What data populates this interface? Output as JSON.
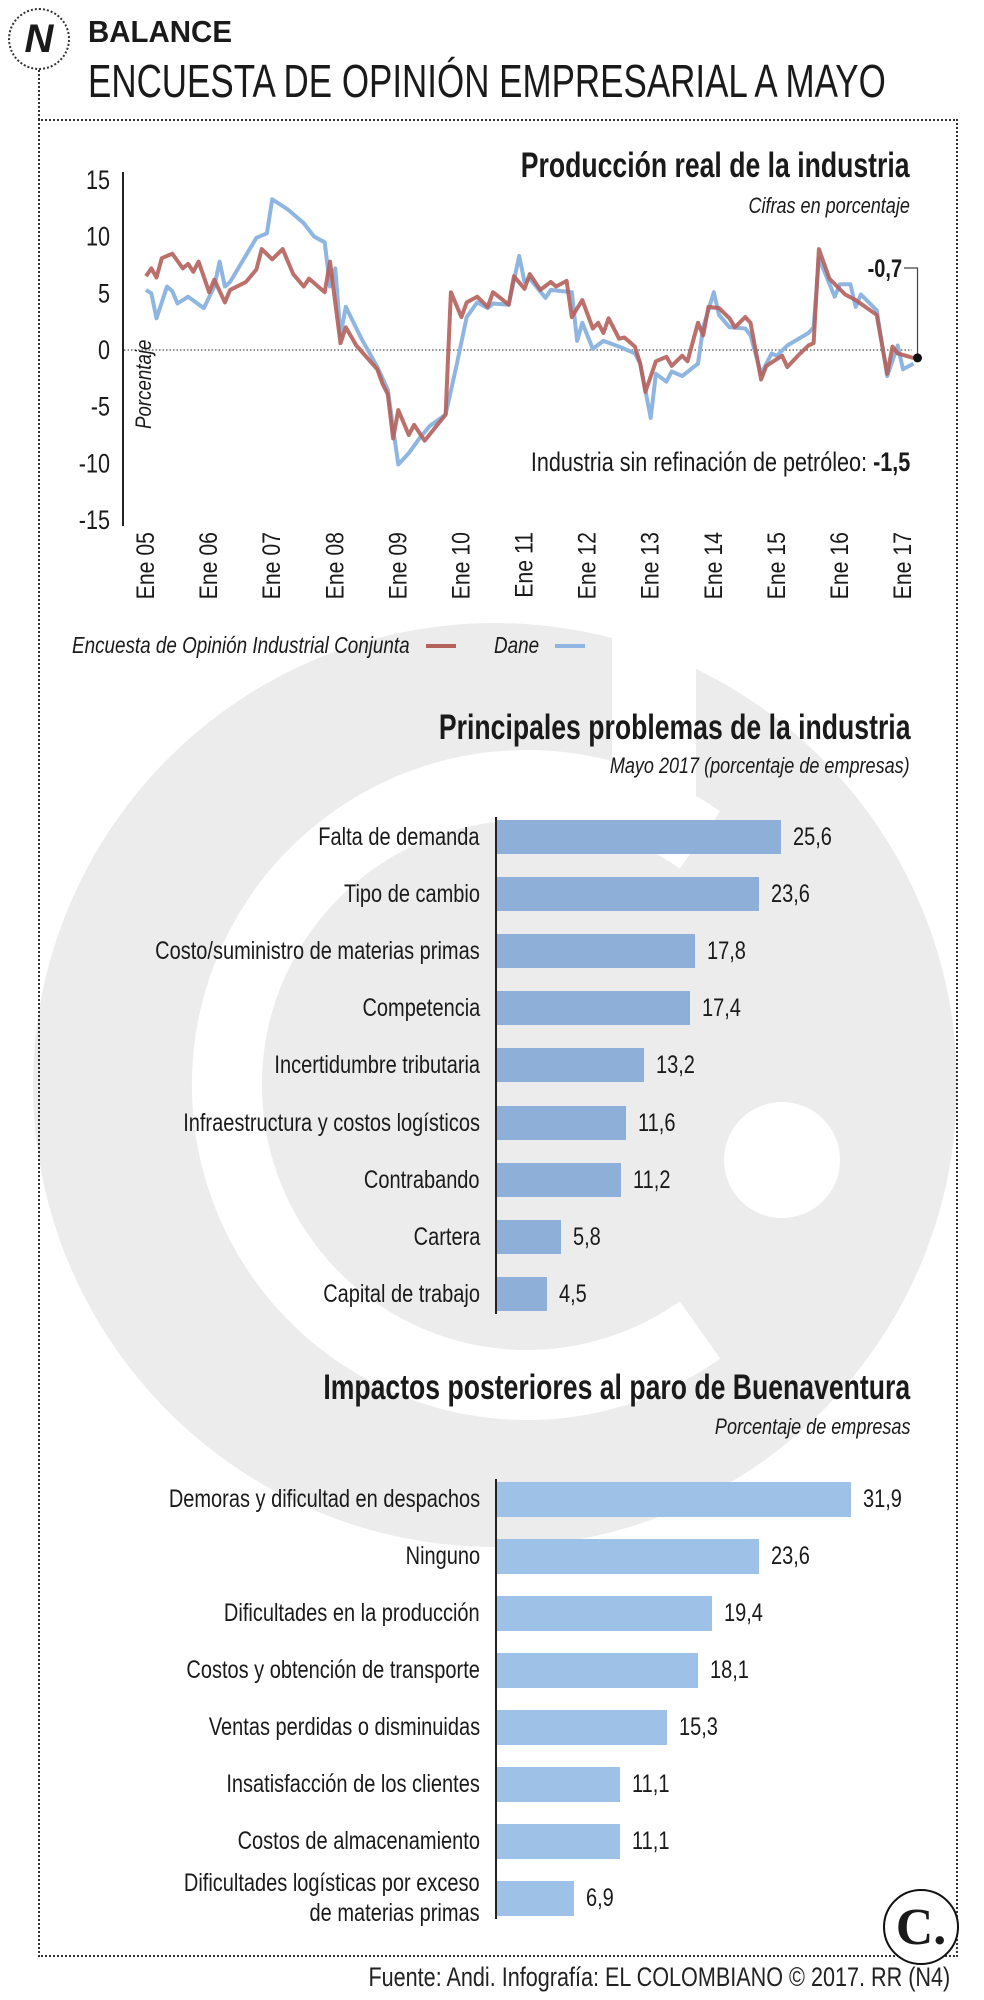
{
  "header": {
    "section": "BALANCE",
    "title": "ENCUESTA DE OPINIÓN EMPRESARIAL A MAYO",
    "logo_icon": "n-logo-icon"
  },
  "colors": {
    "eoic": "#b4605b",
    "dane": "#8fb6e1",
    "bars_1": "#8eafd8",
    "bars_2": "#9ec1e7",
    "watermark": "#ececec"
  },
  "chart_data": [
    {
      "type": "line",
      "title": "Producción real de la industria",
      "subtitle": "Cifras en porcentaje",
      "ylabel": "Porcentaje",
      "ylim": [
        -15,
        15
      ],
      "yticks": [
        "15",
        "10",
        "5",
        "0",
        "-5",
        "-10",
        "-15"
      ],
      "ytick_values": [
        15,
        10,
        5,
        0,
        -5,
        -10,
        -15
      ],
      "xtick_labels": [
        "Ene 05",
        "Ene 06",
        "Ene 07",
        "Ene 08",
        "Ene 09",
        "Ene 10",
        "Ene 11",
        "Ene 12",
        "Ene 13",
        "Ene 14",
        "Ene 15",
        "Ene 16",
        "Ene 17"
      ],
      "xtick_dates": [
        "2005-01",
        "2006-01",
        "2007-01",
        "2008-01",
        "2009-01",
        "2010-01",
        "2011-01",
        "2012-01",
        "2013-01",
        "2014-01",
        "2015-01",
        "2016-01",
        "2017-01"
      ],
      "reference_line": 0,
      "end_label": "-0,7",
      "annotation": {
        "text": "Industria sin refinación de petróleo: ",
        "value": "-1,5"
      },
      "legend": {
        "position": "bottom-left"
      },
      "series": [
        {
          "name": "Encuesta de Opinión Industrial Conjunta",
          "color": "#b4605b",
          "points": [
            [
              "2005-01",
              6.5
            ],
            [
              "2005-02",
              7.2
            ],
            [
              "2005-03",
              6.4
            ],
            [
              "2005-04",
              8.1
            ],
            [
              "2005-06",
              8.5
            ],
            [
              "2005-08",
              7.2
            ],
            [
              "2005-09",
              7.6
            ],
            [
              "2005-10",
              6.9
            ],
            [
              "2005-11",
              7.8
            ],
            [
              "2006-01",
              5.1
            ],
            [
              "2006-02",
              6.2
            ],
            [
              "2006-04",
              4.2
            ],
            [
              "2006-05",
              5.3
            ],
            [
              "2006-08",
              6.0
            ],
            [
              "2006-10",
              7.1
            ],
            [
              "2006-11",
              8.9
            ],
            [
              "2007-01",
              8.0
            ],
            [
              "2007-03",
              8.9
            ],
            [
              "2007-05",
              6.7
            ],
            [
              "2007-07",
              5.6
            ],
            [
              "2007-08",
              6.3
            ],
            [
              "2007-11",
              5.1
            ],
            [
              "2007-12",
              7.8
            ],
            [
              "2008-02",
              0.6
            ],
            [
              "2008-03",
              2.0
            ],
            [
              "2008-05",
              0.4
            ],
            [
              "2008-09",
              -1.7
            ],
            [
              "2008-10",
              -3.0
            ],
            [
              "2008-11",
              -3.9
            ],
            [
              "2008-12",
              -7.8
            ],
            [
              "2009-01",
              -5.3
            ],
            [
              "2009-03",
              -7.5
            ],
            [
              "2009-04",
              -6.6
            ],
            [
              "2009-06",
              -8.0
            ],
            [
              "2009-10",
              -5.7
            ],
            [
              "2009-11",
              5.1
            ],
            [
              "2010-01",
              2.9
            ],
            [
              "2010-02",
              4.2
            ],
            [
              "2010-04",
              4.7
            ],
            [
              "2010-06",
              3.8
            ],
            [
              "2010-07",
              5.1
            ],
            [
              "2010-10",
              4.0
            ],
            [
              "2010-11",
              6.5
            ],
            [
              "2011-01",
              5.4
            ],
            [
              "2011-02",
              6.7
            ],
            [
              "2011-04",
              5.3
            ],
            [
              "2011-06",
              6.0
            ],
            [
              "2011-07",
              5.6
            ],
            [
              "2011-09",
              6.1
            ],
            [
              "2011-10",
              2.9
            ],
            [
              "2011-12",
              4.4
            ],
            [
              "2012-02",
              1.9
            ],
            [
              "2012-03",
              2.4
            ],
            [
              "2012-04",
              1.5
            ],
            [
              "2012-05",
              2.8
            ],
            [
              "2012-07",
              1.0
            ],
            [
              "2012-08",
              1.1
            ],
            [
              "2012-10",
              0.3
            ],
            [
              "2012-11",
              -1.2
            ],
            [
              "2012-12",
              -3.7
            ],
            [
              "2013-02",
              -1.0
            ],
            [
              "2013-04",
              -0.6
            ],
            [
              "2013-05",
              -1.4
            ],
            [
              "2013-07",
              -0.5
            ],
            [
              "2013-08",
              -1.0
            ],
            [
              "2013-10",
              2.4
            ],
            [
              "2013-11",
              1.3
            ],
            [
              "2013-12",
              3.8
            ],
            [
              "2014-02",
              3.7
            ],
            [
              "2014-04",
              2.8
            ],
            [
              "2014-05",
              2.0
            ],
            [
              "2014-07",
              2.9
            ],
            [
              "2014-08",
              2.4
            ],
            [
              "2014-10",
              -2.6
            ],
            [
              "2014-11",
              -1.4
            ],
            [
              "2015-02",
              -0.5
            ],
            [
              "2015-03",
              -1.5
            ],
            [
              "2015-05",
              -0.5
            ],
            [
              "2015-07",
              0.4
            ],
            [
              "2015-08",
              0.6
            ],
            [
              "2015-09",
              8.9
            ],
            [
              "2015-11",
              6.3
            ],
            [
              "2016-02",
              4.9
            ],
            [
              "2016-04",
              4.4
            ],
            [
              "2016-08",
              3.1
            ],
            [
              "2016-10",
              -2.1
            ],
            [
              "2016-11",
              0.3
            ],
            [
              "2016-12",
              -0.3
            ],
            [
              "2017-03",
              -0.7
            ]
          ]
        },
        {
          "name": "Dane",
          "color": "#8fb6e1",
          "points": [
            [
              "2005-01",
              5.3
            ],
            [
              "2005-02",
              5.0
            ],
            [
              "2005-03",
              2.8
            ],
            [
              "2005-05",
              5.6
            ],
            [
              "2005-06",
              5.2
            ],
            [
              "2005-07",
              4.1
            ],
            [
              "2005-09",
              4.7
            ],
            [
              "2005-12",
              3.7
            ],
            [
              "2006-02",
              5.6
            ],
            [
              "2006-03",
              7.8
            ],
            [
              "2006-04",
              5.6
            ],
            [
              "2006-05",
              6.0
            ],
            [
              "2006-10",
              9.9
            ],
            [
              "2006-12",
              10.3
            ],
            [
              "2007-01",
              13.3
            ],
            [
              "2007-04",
              12.4
            ],
            [
              "2007-07",
              11.2
            ],
            [
              "2007-09",
              10.0
            ],
            [
              "2007-11",
              9.5
            ],
            [
              "2007-12",
              5.6
            ],
            [
              "2008-01",
              7.2
            ],
            [
              "2008-02",
              1.3
            ],
            [
              "2008-03",
              3.8
            ],
            [
              "2008-06",
              1.0
            ],
            [
              "2008-09",
              -1.5
            ],
            [
              "2008-11",
              -3.5
            ],
            [
              "2008-12",
              -6.9
            ],
            [
              "2009-01",
              -10.1
            ],
            [
              "2009-03",
              -9.1
            ],
            [
              "2009-05",
              -7.8
            ],
            [
              "2009-07",
              -6.7
            ],
            [
              "2009-10",
              -5.7
            ],
            [
              "2009-12",
              -1.5
            ],
            [
              "2010-02",
              2.9
            ],
            [
              "2010-04",
              4.2
            ],
            [
              "2010-06",
              3.7
            ],
            [
              "2010-07",
              4.1
            ],
            [
              "2010-10",
              4.0
            ],
            [
              "2010-12",
              8.3
            ],
            [
              "2011-01",
              6.0
            ],
            [
              "2011-02",
              6.3
            ],
            [
              "2011-05",
              4.6
            ],
            [
              "2011-06",
              5.3
            ],
            [
              "2011-10",
              5.1
            ],
            [
              "2011-11",
              0.8
            ],
            [
              "2011-12",
              2.4
            ],
            [
              "2012-02",
              0.1
            ],
            [
              "2012-04",
              0.8
            ],
            [
              "2012-07",
              0.3
            ],
            [
              "2012-10",
              -0.3
            ],
            [
              "2012-11",
              -1.2
            ],
            [
              "2013-01",
              -6.0
            ],
            [
              "2013-02",
              -2.1
            ],
            [
              "2013-04",
              -2.8
            ],
            [
              "2013-05",
              -1.9
            ],
            [
              "2013-07",
              -2.3
            ],
            [
              "2013-10",
              -1.2
            ],
            [
              "2013-11",
              2.0
            ],
            [
              "2014-01",
              5.1
            ],
            [
              "2014-02",
              3.1
            ],
            [
              "2014-04",
              2.0
            ],
            [
              "2014-07",
              1.9
            ],
            [
              "2014-08",
              1.3
            ],
            [
              "2014-10",
              -2.1
            ],
            [
              "2014-12",
              -0.3
            ],
            [
              "2015-01",
              -0.5
            ],
            [
              "2015-03",
              0.4
            ],
            [
              "2015-07",
              1.5
            ],
            [
              "2015-08",
              2.0
            ],
            [
              "2015-09",
              8.1
            ],
            [
              "2015-12",
              4.7
            ],
            [
              "2016-01",
              5.8
            ],
            [
              "2016-03",
              5.8
            ],
            [
              "2016-04",
              3.8
            ],
            [
              "2016-05",
              4.9
            ],
            [
              "2016-08",
              3.5
            ],
            [
              "2016-10",
              -2.3
            ],
            [
              "2016-12",
              0.4
            ],
            [
              "2017-01",
              -1.7
            ],
            [
              "2017-03",
              -1.2
            ]
          ]
        }
      ]
    },
    {
      "type": "bar",
      "orientation": "horizontal",
      "title": "Principales problemas de la industria",
      "subtitle": "Mayo 2017 (porcentaje de empresas)",
      "categories": [
        "Falta de demanda",
        "Tipo de cambio",
        "Costo/suministro de materias primas",
        "Competencia",
        "Incertidumbre tributaria",
        "Infraestructura y costos logísticos",
        "Contrabando",
        "Cartera",
        "Capital de trabajo"
      ],
      "values": [
        25.6,
        23.6,
        17.8,
        17.4,
        13.2,
        11.6,
        11.2,
        5.8,
        4.5
      ],
      "value_labels": [
        "25,6",
        "23,6",
        "17,8",
        "17,4",
        "13,2",
        "11,6",
        "11,2",
        "5,8",
        "4,5"
      ]
    },
    {
      "type": "bar",
      "orientation": "horizontal",
      "title": "Impactos posteriores al paro de Buenaventura",
      "subtitle": "Porcentaje de empresas",
      "categories": [
        "Demoras y dificultad en despachos",
        "Ninguno",
        "Dificultades en la producción",
        "Costos y obtención de transporte",
        "Ventas perdidas o disminuidas",
        "Insatisfacción de los clientes",
        "Costos de almacenamiento",
        "Dificultades logísticas por exceso\nde materias primas"
      ],
      "values": [
        31.9,
        23.6,
        19.4,
        18.1,
        15.3,
        11.1,
        11.1,
        6.9
      ],
      "value_labels": [
        "31,9",
        "23,6",
        "19,4",
        "18,1",
        "15,3",
        "11,1",
        "11,1",
        "6,9"
      ]
    }
  ],
  "footer": {
    "source": "Fuente: Andi. Infografía: EL COLOMBIANO © 2017. RR (N4)",
    "brand_logo": "C."
  }
}
